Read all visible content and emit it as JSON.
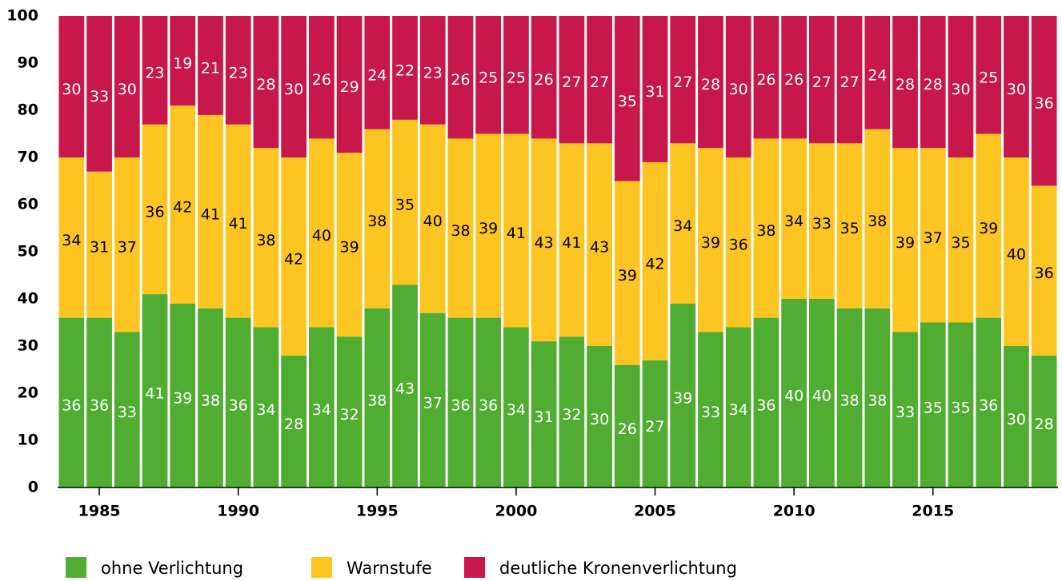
{
  "chart_data": {
    "type": "stacked-bar",
    "x": [
      1984,
      1985,
      1986,
      1987,
      1988,
      1989,
      1990,
      1991,
      1992,
      1993,
      1994,
      1995,
      1996,
      1997,
      1998,
      1999,
      2000,
      2001,
      2002,
      2003,
      2004,
      2005,
      2006,
      2007,
      2008,
      2009,
      2010,
      2011,
      2012,
      2013,
      2014,
      2015,
      2016,
      2017,
      2018,
      2019
    ],
    "xlim": [
      1983.5,
      2019.5
    ],
    "xticks": [
      1985,
      1990,
      1995,
      2000,
      2005,
      2010,
      2015
    ],
    "ylim": [
      0,
      100
    ],
    "yticks": [
      0,
      10,
      20,
      30,
      40,
      50,
      60,
      70,
      80,
      90,
      100
    ],
    "series": [
      {
        "name": "ohne Verlichtung",
        "color": "#50ad32",
        "label_color": "#ffffff",
        "values": [
          36,
          36,
          33,
          41,
          39,
          38,
          36,
          34,
          28,
          34,
          32,
          38,
          43,
          37,
          36,
          36,
          34,
          31,
          32,
          30,
          26,
          27,
          39,
          33,
          34,
          36,
          40,
          40,
          38,
          38,
          33,
          35,
          35,
          36,
          30,
          28
        ]
      },
      {
        "name": "Warnstufe",
        "color": "#fdc521",
        "label_color": "#000000",
        "values": [
          34,
          31,
          37,
          36,
          42,
          41,
          41,
          38,
          42,
          40,
          39,
          38,
          35,
          40,
          38,
          39,
          41,
          43,
          41,
          43,
          39,
          42,
          34,
          39,
          36,
          38,
          34,
          33,
          35,
          38,
          39,
          37,
          35,
          39,
          40,
          36
        ]
      },
      {
        "name": "deutliche Kronenverlichtung",
        "color": "#c8174a",
        "label_color": "#ffffff",
        "values": [
          30,
          33,
          30,
          23,
          19,
          21,
          23,
          28,
          30,
          26,
          29,
          24,
          22,
          23,
          26,
          25,
          25,
          26,
          27,
          27,
          35,
          31,
          27,
          28,
          30,
          26,
          26,
          27,
          27,
          24,
          28,
          28,
          30,
          25,
          30,
          36
        ]
      }
    ]
  }
}
